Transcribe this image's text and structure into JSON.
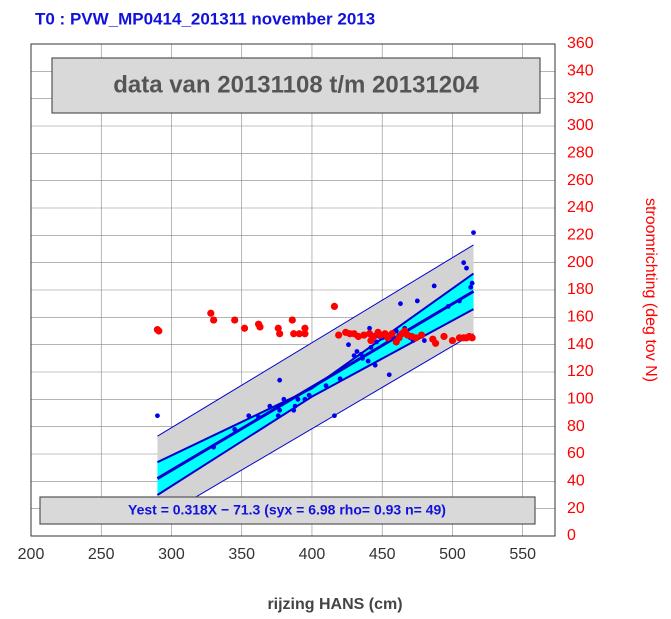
{
  "chart_data": {
    "type": "scatter",
    "title": "T0 : PVW_MP0414_201311    november 2013",
    "annotations": [
      "data van 20131108 t/m 20131204",
      "Yest = 0.318X − 71.3 (syx = 6.98 rho= 0.93 n= 49)"
    ],
    "xlabel": "rijzing HANS (cm)",
    "ylabel": "stroomrichting (deg tov N)",
    "xlim": [
      200,
      573
    ],
    "ylim": [
      0,
      360
    ],
    "xticks": [
      200,
      250,
      300,
      350,
      400,
      450,
      500,
      550
    ],
    "yticks": [
      0,
      20,
      40,
      60,
      80,
      100,
      120,
      140,
      160,
      180,
      200,
      220,
      240,
      260,
      280,
      300,
      320,
      340,
      360
    ],
    "grid": true,
    "prediction_band": {
      "x": [
        290,
        515
      ],
      "lower": [
        12,
        148
      ],
      "upper": [
        73,
        213
      ],
      "color": "#d3d3d3"
    },
    "confidence_band": {
      "x": [
        290,
        400,
        515
      ],
      "lower": [
        30,
        102,
        166
      ],
      "upper": [
        54,
        108,
        192
      ],
      "color": "#00ffff"
    },
    "fit": {
      "x": [
        290,
        515
      ],
      "y": [
        42,
        179
      ],
      "color": "#0000cc"
    },
    "series": [
      {
        "name": "blue",
        "color": "#0000ee",
        "x": [
          290,
          330,
          345,
          355,
          362,
          370,
          376,
          377,
          377,
          380,
          387,
          388,
          390,
          395,
          398,
          410,
          416,
          420,
          426,
          430,
          432,
          435,
          436,
          440,
          441,
          442,
          445,
          446,
          448,
          450,
          452,
          455,
          458,
          460,
          462,
          463,
          466,
          470,
          472,
          475,
          480,
          487,
          497,
          505,
          508,
          510,
          513,
          514,
          515
        ],
        "values": [
          88,
          65,
          78,
          88,
          87,
          95,
          88,
          92,
          114,
          100,
          92,
          95,
          100,
          100,
          103,
          110,
          88,
          115,
          140,
          132,
          135,
          133,
          130,
          128,
          152,
          138,
          125,
          142,
          146,
          145,
          148,
          118,
          145,
          150,
          147,
          170,
          152,
          145,
          143,
          172,
          143,
          183,
          168,
          172,
          200,
          196,
          182,
          185,
          222
        ]
      },
      {
        "name": "red",
        "color": "#ff0000",
        "x": [
          290,
          291,
          328,
          330,
          345,
          352,
          362,
          363,
          376,
          377,
          386,
          387,
          391,
          395,
          395,
          416,
          419,
          424,
          427,
          430,
          433,
          437,
          441,
          442,
          444,
          447,
          449,
          452,
          454,
          457,
          460,
          462,
          464,
          466,
          468,
          471,
          474,
          478,
          486,
          488,
          494,
          500,
          505,
          508,
          510,
          512,
          514
        ],
        "values": [
          151,
          150,
          163,
          158,
          158,
          152,
          155,
          153,
          152,
          148,
          158,
          148,
          148,
          152,
          148,
          168,
          147,
          149,
          148,
          148,
          146,
          147,
          148,
          143,
          146,
          149,
          147,
          148,
          145,
          148,
          142,
          145,
          148,
          150,
          147,
          146,
          145,
          147,
          144,
          141,
          146,
          143,
          145,
          145,
          145,
          146,
          145
        ]
      }
    ]
  }
}
